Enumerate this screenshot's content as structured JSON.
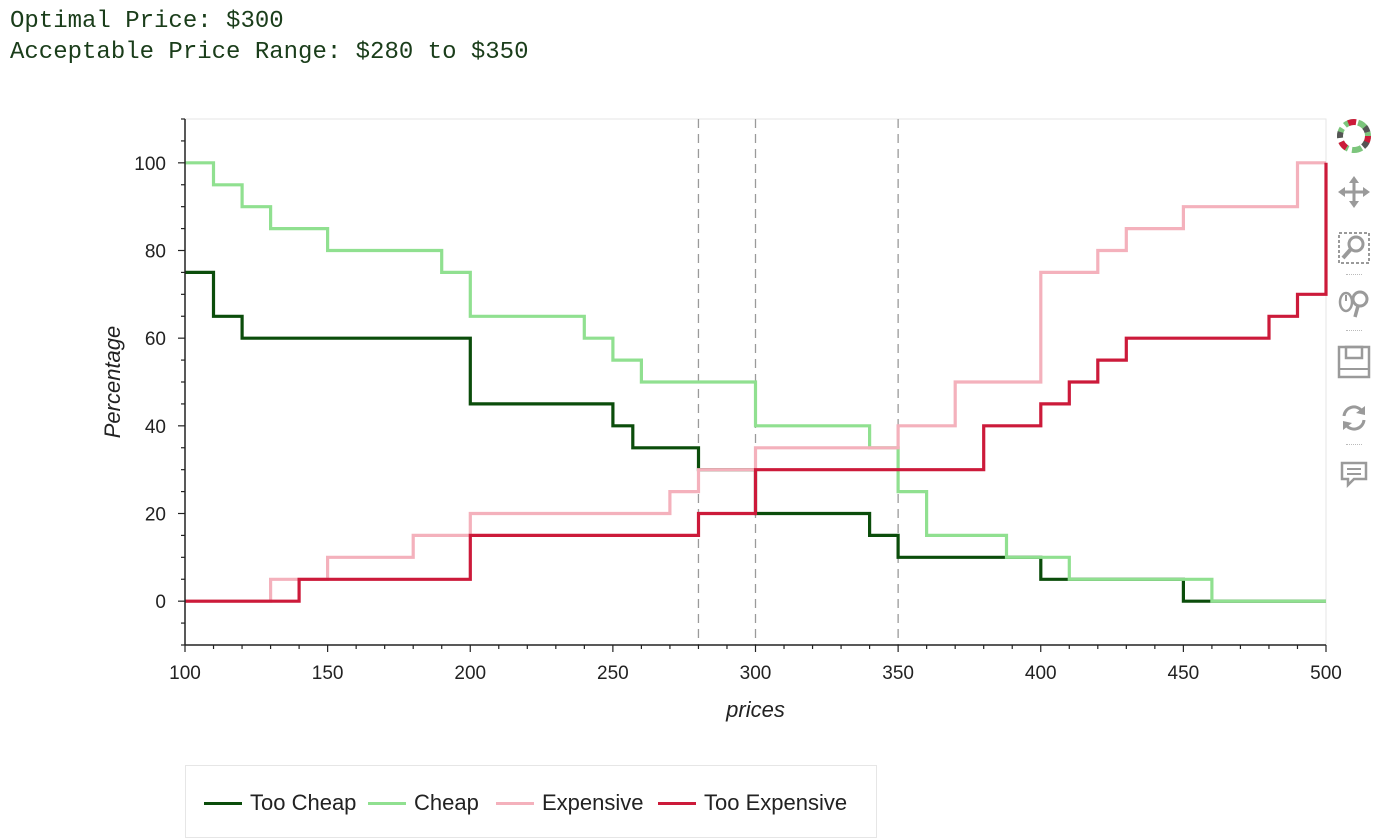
{
  "header": {
    "optimal": "Optimal Price: $300",
    "range": "Acceptable Price Range: $280 to $350"
  },
  "toolbar": {
    "tools": [
      {
        "name": "bokeh-logo-icon"
      },
      {
        "name": "pan-icon"
      },
      {
        "name": "box-zoom-icon"
      },
      {
        "name": "wheel-zoom-icon"
      },
      {
        "name": "save-icon"
      },
      {
        "name": "reset-icon"
      },
      {
        "name": "hover-icon"
      }
    ]
  },
  "chart_data": {
    "type": "line",
    "xlabel": "prices",
    "ylabel": "Percentage",
    "xlim": [
      100,
      500
    ],
    "ylim": [
      -10,
      110
    ],
    "xticks": [
      100,
      150,
      200,
      250,
      300,
      350,
      400,
      450,
      500
    ],
    "yticks": [
      0,
      20,
      40,
      60,
      80,
      100
    ],
    "grid": false,
    "legend_position": "bottom",
    "vlines": [
      280,
      300,
      350
    ],
    "series": [
      {
        "name": "Too Cheap",
        "color": "#0b4d0b",
        "points": [
          [
            100,
            75
          ],
          [
            110,
            75
          ],
          [
            110,
            65
          ],
          [
            120,
            65
          ],
          [
            120,
            60
          ],
          [
            200,
            60
          ],
          [
            200,
            45
          ],
          [
            250,
            45
          ],
          [
            250,
            40
          ],
          [
            257,
            40
          ],
          [
            257,
            35
          ],
          [
            280,
            35
          ],
          [
            280,
            30
          ],
          [
            300,
            30
          ],
          [
            300,
            20
          ],
          [
            340,
            20
          ],
          [
            340,
            15
          ],
          [
            350,
            15
          ],
          [
            350,
            10
          ],
          [
            400,
            10
          ],
          [
            400,
            5
          ],
          [
            450,
            5
          ],
          [
            450,
            0
          ],
          [
            500,
            0
          ]
        ]
      },
      {
        "name": "Cheap",
        "color": "#90e090",
        "points": [
          [
            100,
            100
          ],
          [
            110,
            100
          ],
          [
            110,
            95
          ],
          [
            120,
            95
          ],
          [
            120,
            90
          ],
          [
            130,
            90
          ],
          [
            130,
            85
          ],
          [
            150,
            85
          ],
          [
            150,
            80
          ],
          [
            190,
            80
          ],
          [
            190,
            75
          ],
          [
            200,
            75
          ],
          [
            200,
            65
          ],
          [
            240,
            65
          ],
          [
            240,
            60
          ],
          [
            250,
            60
          ],
          [
            250,
            55
          ],
          [
            260,
            55
          ],
          [
            260,
            50
          ],
          [
            300,
            50
          ],
          [
            300,
            40
          ],
          [
            340,
            40
          ],
          [
            340,
            35
          ],
          [
            350,
            35
          ],
          [
            350,
            25
          ],
          [
            360,
            25
          ],
          [
            360,
            15
          ],
          [
            388,
            15
          ],
          [
            388,
            10
          ],
          [
            410,
            10
          ],
          [
            410,
            5
          ],
          [
            460,
            5
          ],
          [
            460,
            0
          ],
          [
            500,
            0
          ]
        ]
      },
      {
        "name": "Expensive",
        "color": "#f4b1bc",
        "points": [
          [
            100,
            0
          ],
          [
            130,
            0
          ],
          [
            130,
            5
          ],
          [
            150,
            5
          ],
          [
            150,
            10
          ],
          [
            180,
            10
          ],
          [
            180,
            15
          ],
          [
            200,
            15
          ],
          [
            200,
            20
          ],
          [
            270,
            20
          ],
          [
            270,
            25
          ],
          [
            280,
            25
          ],
          [
            280,
            30
          ],
          [
            300,
            30
          ],
          [
            300,
            35
          ],
          [
            350,
            35
          ],
          [
            350,
            40
          ],
          [
            370,
            40
          ],
          [
            370,
            50
          ],
          [
            400,
            50
          ],
          [
            400,
            75
          ],
          [
            420,
            75
          ],
          [
            420,
            80
          ],
          [
            430,
            80
          ],
          [
            430,
            85
          ],
          [
            450,
            85
          ],
          [
            450,
            90
          ],
          [
            490,
            90
          ],
          [
            490,
            100
          ],
          [
            500,
            100
          ]
        ]
      },
      {
        "name": "Too Expensive",
        "color": "#cc1a3a",
        "points": [
          [
            100,
            0
          ],
          [
            140,
            0
          ],
          [
            140,
            5
          ],
          [
            200,
            5
          ],
          [
            200,
            15
          ],
          [
            280,
            15
          ],
          [
            280,
            20
          ],
          [
            300,
            20
          ],
          [
            300,
            30
          ],
          [
            380,
            30
          ],
          [
            380,
            40
          ],
          [
            400,
            40
          ],
          [
            400,
            45
          ],
          [
            410,
            45
          ],
          [
            410,
            50
          ],
          [
            420,
            50
          ],
          [
            420,
            55
          ],
          [
            430,
            55
          ],
          [
            430,
            60
          ],
          [
            480,
            60
          ],
          [
            480,
            65
          ],
          [
            490,
            65
          ],
          [
            490,
            70
          ],
          [
            500,
            70
          ],
          [
            500,
            100
          ]
        ]
      }
    ]
  }
}
